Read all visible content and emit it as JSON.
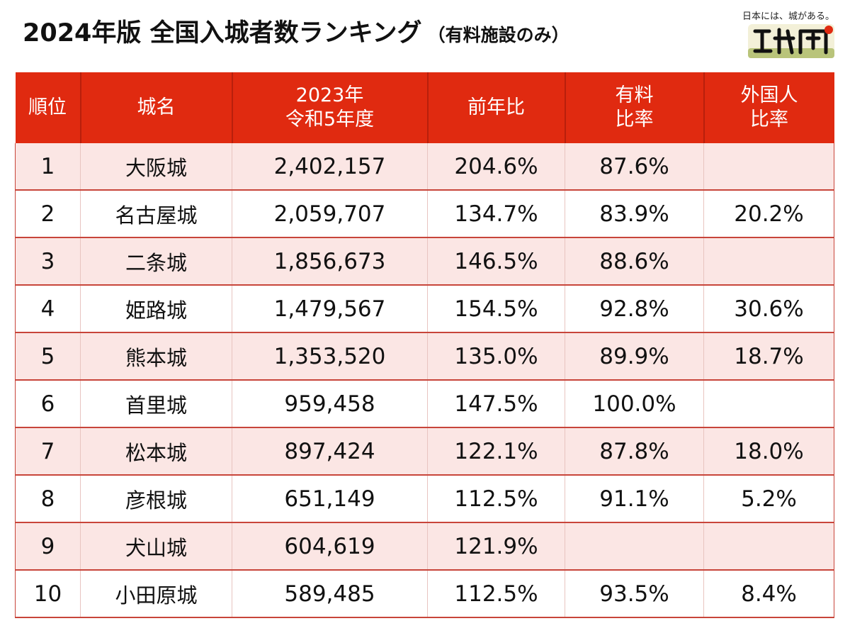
{
  "title": {
    "main": "2024年版 全国入城者数ランキング",
    "sub": "（有料施設のみ）"
  },
  "logo": {
    "tagline": "日本には、城がある。",
    "mark": "攻城団"
  },
  "colors": {
    "header_bg": "#e02a10",
    "row_odd": "#fbe6e4",
    "row_even": "#ffffff",
    "border": "#c8453a"
  },
  "chart_data": {
    "type": "table",
    "title": "2024年版 全国入城者数ランキング（有料施設のみ）",
    "columns": [
      {
        "line1": "順位",
        "line2": ""
      },
      {
        "line1": "城名",
        "line2": ""
      },
      {
        "line1": "2023年",
        "line2": "令和5年度"
      },
      {
        "line1": "前年比",
        "line2": ""
      },
      {
        "line1": "有料",
        "line2": "比率"
      },
      {
        "line1": "外国人",
        "line2": "比率"
      }
    ],
    "rows": [
      {
        "rank": "1",
        "name": "大阪城",
        "visitors": "2,402,157",
        "yoy": "204.6%",
        "paid_ratio": "87.6%",
        "foreign_ratio": ""
      },
      {
        "rank": "2",
        "name": "名古屋城",
        "visitors": "2,059,707",
        "yoy": "134.7%",
        "paid_ratio": "83.9%",
        "foreign_ratio": "20.2%"
      },
      {
        "rank": "3",
        "name": "二条城",
        "visitors": "1,856,673",
        "yoy": "146.5%",
        "paid_ratio": "88.6%",
        "foreign_ratio": ""
      },
      {
        "rank": "4",
        "name": "姫路城",
        "visitors": "1,479,567",
        "yoy": "154.5%",
        "paid_ratio": "92.8%",
        "foreign_ratio": "30.6%"
      },
      {
        "rank": "5",
        "name": "熊本城",
        "visitors": "1,353,520",
        "yoy": "135.0%",
        "paid_ratio": "89.9%",
        "foreign_ratio": "18.7%"
      },
      {
        "rank": "6",
        "name": "首里城",
        "visitors": "959,458",
        "yoy": "147.5%",
        "paid_ratio": "100.0%",
        "foreign_ratio": ""
      },
      {
        "rank": "7",
        "name": "松本城",
        "visitors": "897,424",
        "yoy": "122.1%",
        "paid_ratio": "87.8%",
        "foreign_ratio": "18.0%"
      },
      {
        "rank": "8",
        "name": "彦根城",
        "visitors": "651,149",
        "yoy": "112.5%",
        "paid_ratio": "91.1%",
        "foreign_ratio": "5.2%"
      },
      {
        "rank": "9",
        "name": "犬山城",
        "visitors": "604,619",
        "yoy": "121.9%",
        "paid_ratio": "",
        "foreign_ratio": ""
      },
      {
        "rank": "10",
        "name": "小田原城",
        "visitors": "589,485",
        "yoy": "112.5%",
        "paid_ratio": "93.5%",
        "foreign_ratio": "8.4%"
      }
    ]
  }
}
